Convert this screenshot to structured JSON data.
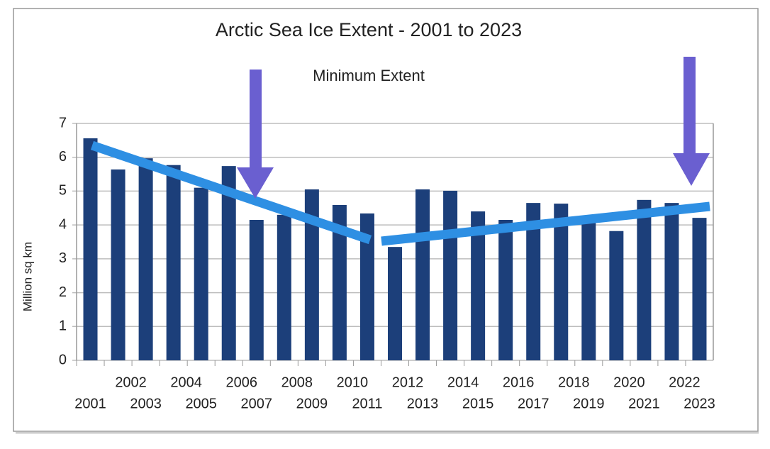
{
  "chart_data": {
    "type": "bar",
    "title": "Arctic Sea Ice Extent - 2001 to 2023",
    "subtitle": "Minimum Extent",
    "y_label": "Million sq km",
    "categories": [
      "2001",
      "2002",
      "2003",
      "2004",
      "2005",
      "2006",
      "2007",
      "2008",
      "2009",
      "2010",
      "2011",
      "2012",
      "2013",
      "2014",
      "2015",
      "2016",
      "2017",
      "2018",
      "2019",
      "2020",
      "2021",
      "2022",
      "2023"
    ],
    "values": [
      6.56,
      5.64,
      5.97,
      5.77,
      5.1,
      5.74,
      4.15,
      4.3,
      5.05,
      4.59,
      4.34,
      3.35,
      5.05,
      5.01,
      4.4,
      4.15,
      4.65,
      4.63,
      4.1,
      3.82,
      4.74,
      4.65,
      4.21
    ],
    "color": "#1c3f7a",
    "ylim": [
      0,
      7
    ],
    "yticks": [
      0,
      1,
      2,
      3,
      4,
      5,
      6,
      7
    ],
    "grid": true
  }
}
